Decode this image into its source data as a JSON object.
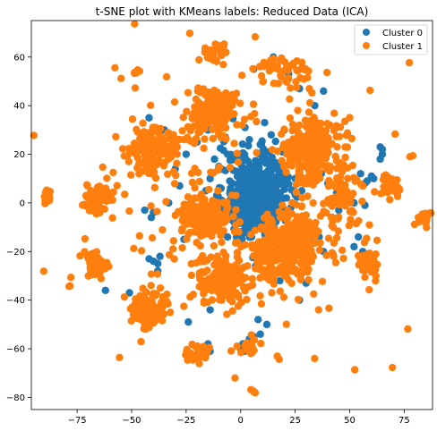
{
  "chart_data": {
    "type": "scatter",
    "title": "t-SNE plot with KMeans labels: Reduced Data (ICA)",
    "xlabel": "",
    "ylabel": "",
    "xlim": [
      -96,
      88
    ],
    "ylim": [
      -85,
      75
    ],
    "xticks": [
      -75,
      -50,
      -25,
      0,
      25,
      50,
      75
    ],
    "yticks": [
      -80,
      -60,
      -40,
      -20,
      0,
      20,
      40,
      60
    ],
    "grid": false,
    "legend_position": "top-right",
    "series": [
      {
        "name": "Cluster 0",
        "color": "#1f77b4",
        "points": [
          [
            6,
            0
          ],
          [
            11,
            5
          ],
          [
            2,
            2
          ],
          [
            14,
            -1
          ],
          [
            8,
            -5
          ],
          [
            0,
            -2
          ],
          [
            16,
            6
          ],
          [
            4,
            8
          ],
          [
            10,
            12
          ],
          [
            12,
            -8
          ],
          [
            -3,
            4
          ],
          [
            -5,
            9
          ],
          [
            -9,
            6
          ],
          [
            -2,
            13
          ],
          [
            7,
            17
          ],
          [
            14,
            16
          ],
          [
            -4,
            -5
          ],
          [
            3,
            -9
          ],
          [
            18,
            -3
          ],
          [
            -8,
            -1
          ],
          [
            9,
            24
          ],
          [
            14,
            28
          ],
          [
            20,
            30
          ],
          [
            4,
            26
          ],
          [
            -6,
            20
          ],
          [
            -10,
            15
          ],
          [
            -14,
            10
          ],
          [
            1,
            20
          ],
          [
            13,
            21
          ],
          [
            17,
            11
          ],
          [
            21,
            2
          ],
          [
            20,
            -5
          ],
          [
            -1,
            -12
          ],
          [
            5,
            -14
          ],
          [
            10,
            -16
          ],
          [
            -12,
            18
          ],
          [
            -7,
            27
          ],
          [
            2,
            31
          ],
          [
            11,
            33
          ],
          [
            24,
            24
          ],
          [
            7,
            3
          ],
          [
            3,
            5
          ],
          [
            9,
            -2
          ],
          [
            5,
            10
          ],
          [
            1,
            -6
          ],
          [
            15,
            4
          ],
          [
            -1,
            8
          ],
          [
            12,
            9
          ],
          [
            6,
            -10
          ],
          [
            -5,
            1
          ],
          [
            27,
            47
          ],
          [
            6,
            55
          ],
          [
            15,
            60
          ],
          [
            22,
            53
          ],
          [
            38,
            46
          ],
          [
            34,
            40
          ],
          [
            -14,
            -44
          ],
          [
            -3,
            -8
          ],
          [
            19,
            15
          ],
          [
            -11,
            3
          ],
          [
            -40,
            -4
          ],
          [
            -44,
            -3
          ],
          [
            -41,
            -6
          ],
          [
            -51,
            -37
          ],
          [
            -62,
            -36
          ],
          [
            -38,
            -25
          ],
          [
            -37,
            -22
          ],
          [
            -40,
            -24
          ],
          [
            -38,
            -28
          ],
          [
            -42,
            -23
          ],
          [
            -23,
            -63
          ],
          [
            -19,
            -60
          ],
          [
            -15,
            -58
          ],
          [
            -14,
            -61
          ],
          [
            -24,
            -49
          ],
          [
            1,
            -58
          ],
          [
            4,
            -56
          ],
          [
            6,
            -55
          ],
          [
            2,
            -61
          ],
          [
            0,
            -60
          ],
          [
            55,
            12
          ],
          [
            58,
            9
          ],
          [
            60,
            11
          ],
          [
            57,
            8
          ],
          [
            61,
            10
          ],
          [
            54,
            -14
          ],
          [
            52,
            -18
          ],
          [
            56,
            -20
          ],
          [
            60,
            -22
          ],
          [
            58,
            -24
          ],
          [
            64,
            23
          ],
          [
            65,
            22
          ],
          [
            64,
            18
          ],
          [
            65,
            20
          ],
          [
            52,
            0
          ],
          [
            57,
            -1
          ],
          [
            45,
            -3
          ],
          [
            33,
            -15
          ],
          [
            38,
            -20
          ],
          [
            36,
            -14
          ],
          [
            27,
            -40
          ],
          [
            18,
            -32
          ],
          [
            30,
            -33
          ],
          [
            8,
            -48
          ],
          [
            9,
            -54
          ],
          [
            12,
            -50
          ],
          [
            -28,
            7
          ],
          [
            -33,
            0
          ],
          [
            -26,
            -15
          ],
          [
            -25,
            20
          ],
          [
            25,
            10
          ],
          [
            23,
            -2
          ],
          [
            28,
            5
          ],
          [
            -13,
            -8
          ],
          [
            -6,
            -14
          ],
          [
            11,
            -20
          ],
          [
            20,
            -12
          ],
          [
            -16,
            5
          ],
          [
            -2,
            -16
          ],
          [
            17,
            -14
          ],
          [
            40,
            8
          ],
          [
            42,
            -6
          ],
          [
            44,
            4
          ],
          [
            37,
            12
          ],
          [
            -15,
            30
          ],
          [
            -20,
            25
          ],
          [
            -35,
            30
          ],
          [
            -42,
            35
          ],
          [
            -30,
            14
          ],
          [
            29,
            15
          ]
        ]
      },
      {
        "name": "Cluster 1",
        "color": "#ff7f0e",
        "blobs": [
          {
            "cx": -12,
            "cy": 37,
            "rx": 10,
            "ry": 9,
            "n": 170
          },
          {
            "cx": -40,
            "cy": 22,
            "rx": 10,
            "ry": 8,
            "n": 150
          },
          {
            "cx": 32,
            "cy": 22,
            "rx": 13,
            "ry": 12,
            "n": 230
          },
          {
            "cx": -16,
            "cy": -6,
            "rx": 10,
            "ry": 8,
            "n": 140
          },
          {
            "cx": 21,
            "cy": -18,
            "rx": 16,
            "ry": 13,
            "n": 320
          },
          {
            "cx": -7,
            "cy": -32,
            "rx": 10,
            "ry": 9,
            "n": 160
          },
          {
            "cx": -42,
            "cy": -44,
            "rx": 6,
            "ry": 7,
            "n": 95
          },
          {
            "cx": -66,
            "cy": 1,
            "rx": 6,
            "ry": 5,
            "n": 75
          },
          {
            "cx": -67,
            "cy": -25,
            "rx": 5,
            "ry": 5,
            "n": 60
          },
          {
            "cx": -89,
            "cy": 3,
            "rx": 2,
            "ry": 3,
            "n": 16
          },
          {
            "cx": 84,
            "cy": -6,
            "rx": 2.5,
            "ry": 3,
            "n": 18
          },
          {
            "cx": 68,
            "cy": 8,
            "rx": 4,
            "ry": 4,
            "n": 40
          },
          {
            "cx": 59,
            "cy": -25,
            "rx": 4,
            "ry": 5,
            "n": 45
          },
          {
            "cx": -19,
            "cy": -62,
            "rx": 5,
            "ry": 3,
            "n": 30
          },
          {
            "cx": 4,
            "cy": -59,
            "rx": 4,
            "ry": 3,
            "n": 20
          },
          {
            "cx": -48,
            "cy": 54,
            "rx": 1.5,
            "ry": 1.5,
            "n": 10
          },
          {
            "cx": 6,
            "cy": -77,
            "rx": 1,
            "ry": 1,
            "n": 5
          },
          {
            "cx": -12,
            "cy": 62,
            "rx": 5,
            "ry": 4,
            "n": 25
          },
          {
            "cx": 20,
            "cy": 55,
            "rx": 12,
            "ry": 6,
            "n": 45
          },
          {
            "cx": 46,
            "cy": 5,
            "rx": 8,
            "ry": 14,
            "n": 70
          },
          {
            "cx": 0,
            "cy": 0,
            "rx": 62,
            "ry": 55,
            "n": 240
          }
        ],
        "points": []
      }
    ]
  }
}
